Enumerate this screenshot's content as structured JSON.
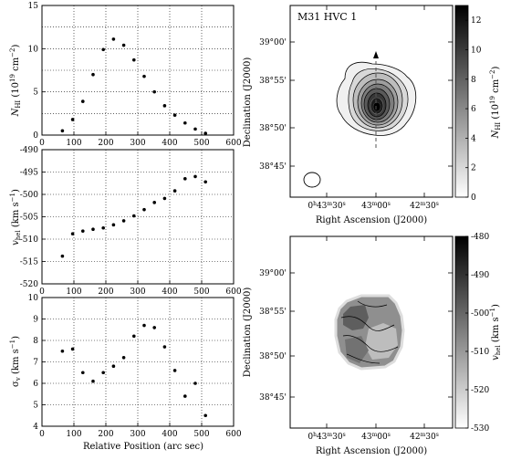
{
  "chart_data": [
    {
      "type": "scatter",
      "ylabel": "N_HI (10^19 cm^-2)",
      "ylabel_parts": {
        "main": "N",
        "sub": "HI",
        "rest": " (10",
        "sup": "19",
        "end": " cm",
        "sup2": "−2",
        "close": ")"
      },
      "xlim": [
        0,
        600
      ],
      "ylim": [
        0,
        15
      ],
      "x_ticks": [
        "0",
        "100",
        "200",
        "300",
        "400",
        "500",
        "600"
      ],
      "y_ticks": [
        "0",
        "5",
        "10",
        "15"
      ],
      "x_tick_values": [
        0,
        100,
        200,
        300,
        400,
        500,
        600
      ],
      "y_tick_values": [
        0,
        5,
        10,
        15
      ],
      "y_grid": [
        2.5,
        5,
        7.5,
        10,
        12.5
      ],
      "grid": true,
      "x": [
        64,
        96,
        128,
        160,
        192,
        224,
        256,
        288,
        320,
        352,
        384,
        416,
        448,
        480,
        512
      ],
      "y": [
        0.5,
        1.8,
        3.9,
        7.0,
        9.9,
        11.1,
        10.4,
        8.7,
        6.8,
        5.0,
        3.4,
        2.3,
        1.4,
        0.7,
        0.2
      ]
    },
    {
      "type": "scatter",
      "ylabel": "v_hel (km s^-1)",
      "ylabel_parts": {
        "main": "v",
        "sub": "hel",
        "rest": " (km s",
        "sup": "−1",
        "close": ")"
      },
      "xlim": [
        0,
        600
      ],
      "ylim": [
        -520,
        -490
      ],
      "x_ticks": [
        "0",
        "100",
        "200",
        "300",
        "400",
        "500",
        "600"
      ],
      "y_ticks": [
        "-490",
        "-495",
        "-500",
        "-505",
        "-510",
        "-515",
        "-520"
      ],
      "x_tick_values": [
        0,
        100,
        200,
        300,
        400,
        500,
        600
      ],
      "y_tick_values": [
        -490,
        -495,
        -500,
        -505,
        -510,
        -515,
        -520
      ],
      "y_grid": [
        -495,
        -500,
        -505,
        -510,
        -515
      ],
      "grid": true,
      "x": [
        64,
        96,
        128,
        160,
        192,
        224,
        256,
        288,
        320,
        352,
        384,
        416,
        448,
        480,
        512
      ],
      "y": [
        -513.8,
        -508.8,
        -508.2,
        -507.8,
        -507.5,
        -506.8,
        -505.9,
        -504.8,
        -503.4,
        -501.8,
        -500.9,
        -499.2,
        -496.5,
        -496.0,
        -497.2
      ]
    },
    {
      "type": "scatter",
      "ylabel": "σ_v (km s^-1)",
      "ylabel_parts": {
        "main": "σ",
        "sub": "v",
        "rest": " (km s",
        "sup": "−1",
        "close": ")"
      },
      "xlabel": "Relative Position (arc sec)",
      "xlim": [
        0,
        600
      ],
      "ylim": [
        4,
        10
      ],
      "x_ticks": [
        "0",
        "100",
        "200",
        "300",
        "400",
        "500",
        "600"
      ],
      "y_ticks": [
        "4",
        "5",
        "6",
        "7",
        "8",
        "9",
        "10"
      ],
      "x_tick_values": [
        0,
        100,
        200,
        300,
        400,
        500,
        600
      ],
      "y_tick_values": [
        4,
        5,
        6,
        7,
        8,
        9,
        10
      ],
      "y_grid": [
        5,
        6,
        7,
        8,
        9
      ],
      "grid": true,
      "x": [
        64,
        96,
        128,
        160,
        192,
        224,
        256,
        288,
        320,
        352,
        384,
        416,
        448,
        480,
        512
      ],
      "y": [
        7.5,
        7.6,
        6.5,
        6.1,
        6.5,
        6.8,
        7.2,
        8.2,
        8.7,
        8.6,
        7.7,
        6.6,
        5.4,
        6.0,
        4.5
      ]
    },
    {
      "type": "heatmap",
      "panel_label": "M31 HVC 1",
      "xlabel": "Right Ascension (J2000)",
      "ylabel": "Declination (J2000)",
      "x_ticks": [
        "0h43m30s",
        "43m00s",
        "42m30s"
      ],
      "x_tick_parts": [
        [
          "0",
          "h",
          "43",
          "m",
          "30",
          "s"
        ],
        [
          "43",
          "m",
          "00",
          "s"
        ],
        [
          "42",
          "m",
          "30",
          "s"
        ]
      ],
      "y_ticks": [
        "39°00'",
        "38°55'",
        "38°50'",
        "38°45'"
      ],
      "colorbar_label": "N_HI (10^19 cm^-2)",
      "colorbar_label_parts": {
        "main": "N",
        "sub": "HI",
        "rest": " (10",
        "sup": "19",
        "end": " cm",
        "sup2": "−2",
        "close": ")"
      },
      "colorbar_range": [
        0,
        13
      ],
      "colorbar_ticks": [
        "0",
        "2",
        "4",
        "6",
        "8",
        "10",
        "12"
      ],
      "colorbar_tick_values": [
        0,
        2,
        4,
        6,
        8,
        10,
        12
      ],
      "colormap": "white-to-black",
      "contours": 10
    },
    {
      "type": "heatmap",
      "xlabel": "Right Ascension (J2000)",
      "ylabel": "Declination (J2000)",
      "x_ticks": [
        "0h43m30s",
        "43m00s",
        "42m30s"
      ],
      "x_tick_parts": [
        [
          "0",
          "h",
          "43",
          "m",
          "30",
          "s"
        ],
        [
          "43",
          "m",
          "00",
          "s"
        ],
        [
          "42",
          "m",
          "30",
          "s"
        ]
      ],
      "y_ticks": [
        "39°00'",
        "38°55'",
        "38°50'",
        "38°45'"
      ],
      "colorbar_label": "v_hel (km s^-1)",
      "colorbar_label_parts": {
        "main": "v",
        "sub": "hel",
        "rest": " (km s",
        "sup": "−1",
        "close": ")"
      },
      "colorbar_range": [
        -530,
        -480
      ],
      "colorbar_ticks": [
        "-480",
        "-490",
        "-500",
        "-510",
        "-520",
        "-530"
      ],
      "colorbar_tick_values": [
        -480,
        -490,
        -500,
        -510,
        -520,
        -530
      ],
      "colormap": "black-to-white"
    }
  ]
}
